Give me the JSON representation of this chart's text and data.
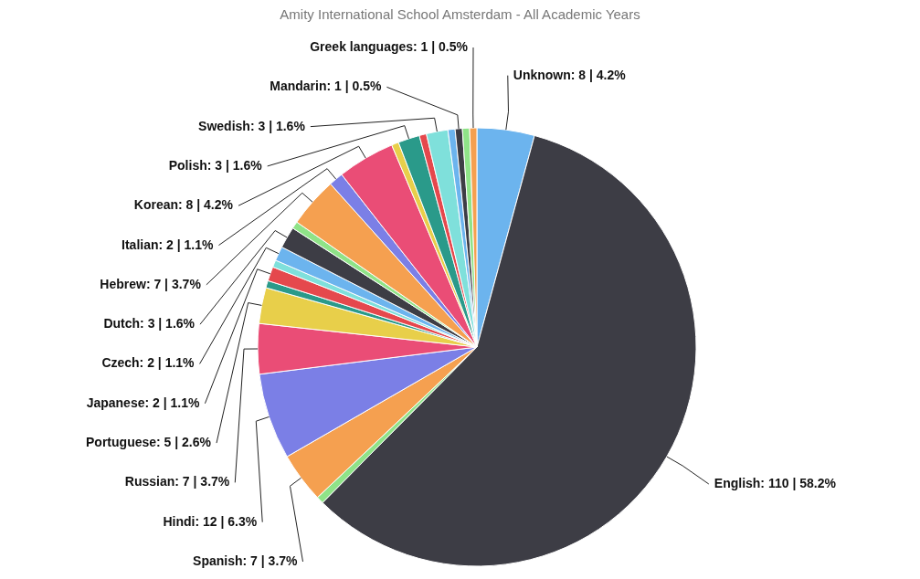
{
  "chart_data": {
    "type": "pie",
    "title": "Amity International School Amsterdam - All Academic Years",
    "categories": [
      "Unknown",
      "English",
      null,
      "Spanish",
      "Hindi",
      "Russian",
      "Portuguese",
      null,
      "Japanese",
      null,
      "Czech",
      "Dutch",
      null,
      "Hebrew",
      "Italian",
      "Korean",
      null,
      "Polish",
      null,
      "Swedish",
      null,
      "Mandarin",
      null,
      "Greek languages"
    ],
    "values": [
      8,
      110,
      1,
      7,
      12,
      7,
      5,
      1,
      2,
      1,
      2,
      3,
      1,
      7,
      2,
      8,
      1,
      3,
      1,
      3,
      1,
      1,
      1,
      1
    ],
    "value_labels": [
      "8 | 4.2%",
      "110 | 58.2%",
      null,
      "7 | 3.7%",
      "12 | 6.3%",
      "7 | 3.7%",
      "5 | 2.6%",
      null,
      "2 | 1.1%",
      null,
      "2 | 1.1%",
      "3 | 1.6%",
      null,
      "7 | 3.7%",
      "2 | 1.1%",
      "8 | 4.2%",
      null,
      "3 | 1.6%",
      null,
      "3 | 1.6%",
      null,
      "1 | 0.5%",
      null,
      "1 | 0.5%"
    ],
    "colors": [
      "#6cb4ee",
      "#3d3d45",
      "#8fe388",
      "#f5a050",
      "#7b7fe6",
      "#ea4d76",
      "#e8cf4a",
      "#2a9a8a",
      "#e5484d",
      "#7fe0db",
      "#6cb4ee",
      "#3d3d45",
      "#8fe388",
      "#f5a050",
      "#7b7fe6",
      "#ea4d76",
      "#e8cf4a",
      "#2a9a8a",
      "#e5484d",
      "#7fe0db",
      "#6cb4ee",
      "#3d3d45",
      "#8fe388",
      "#f5a050"
    ]
  }
}
